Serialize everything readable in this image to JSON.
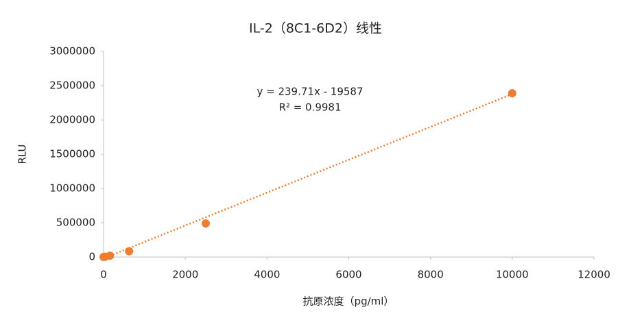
{
  "chart_data": {
    "type": "scatter",
    "title": "IL-2（8C1-6D2）线性",
    "x_label": "抗原浓度（pg/ml）",
    "y_label": "RLU",
    "series": [
      {
        "name": "RLU",
        "color": "#ed7d31",
        "x": [
          0,
          39,
          156,
          625,
          2500,
          10000
        ],
        "values": [
          1000,
          5000,
          20000,
          85000,
          490000,
          2390000
        ]
      }
    ],
    "trendline": {
      "slope": 239.71,
      "intercept": -19587,
      "color": "#ed7d31",
      "equation": "y = 239.71x - 19587",
      "r2_label": "R² = 0.9981"
    },
    "xlim": [
      0,
      12000
    ],
    "xticks": [
      0,
      2000,
      4000,
      6000,
      8000,
      10000,
      12000
    ],
    "ylim": [
      0,
      3000000
    ],
    "yticks": [
      0,
      500000,
      1000000,
      1500000,
      2000000,
      2500000,
      3000000
    ],
    "grid": false
  }
}
